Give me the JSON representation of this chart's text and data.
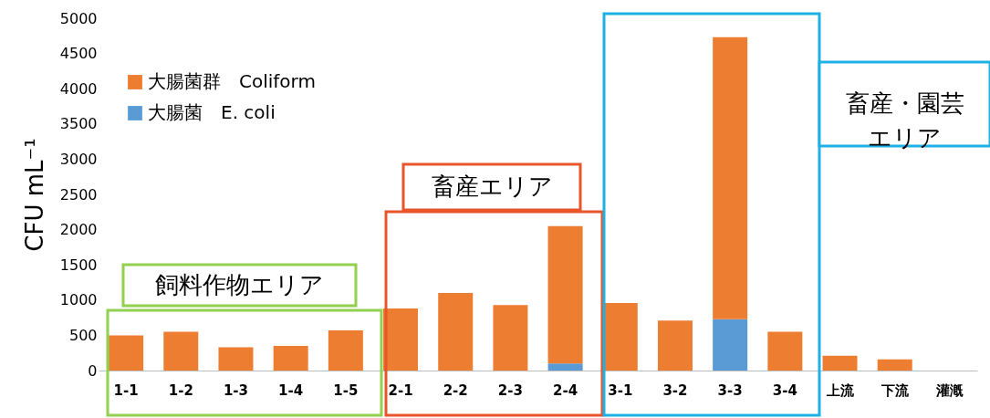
{
  "chart_data": {
    "type": "bar",
    "stacked": true,
    "ylabel": "CFU mL⁻¹",
    "categories": [
      "1-1",
      "1-2",
      "1-3",
      "1-4",
      "1-5",
      "2-1",
      "2-2",
      "2-3",
      "2-4",
      "3-1",
      "3-2",
      "3-3",
      "3-4",
      "上流",
      "下流",
      "灌漑"
    ],
    "series": [
      {
        "name": "大腸菌　E. coli",
        "color": "#5b9bd5",
        "values": [
          0,
          0,
          0,
          0,
          0,
          0,
          0,
          0,
          100,
          0,
          0,
          730,
          0,
          0,
          0,
          0
        ]
      },
      {
        "name": "大腸菌群　Coliform",
        "color": "#ed7d31",
        "values": [
          500,
          550,
          330,
          350,
          570,
          880,
          1100,
          930,
          1950,
          960,
          710,
          4000,
          550,
          210,
          160,
          0
        ]
      }
    ],
    "ylim": [
      0,
      5000
    ],
    "yticks": [
      0,
      500,
      1000,
      1500,
      2000,
      2500,
      3000,
      3500,
      4000,
      4500,
      5000
    ],
    "grid": false,
    "legend": "top left",
    "annotations": [
      "飼料作物エリア",
      "畜産エリア",
      "畜産・園芸エリア"
    ]
  }
}
